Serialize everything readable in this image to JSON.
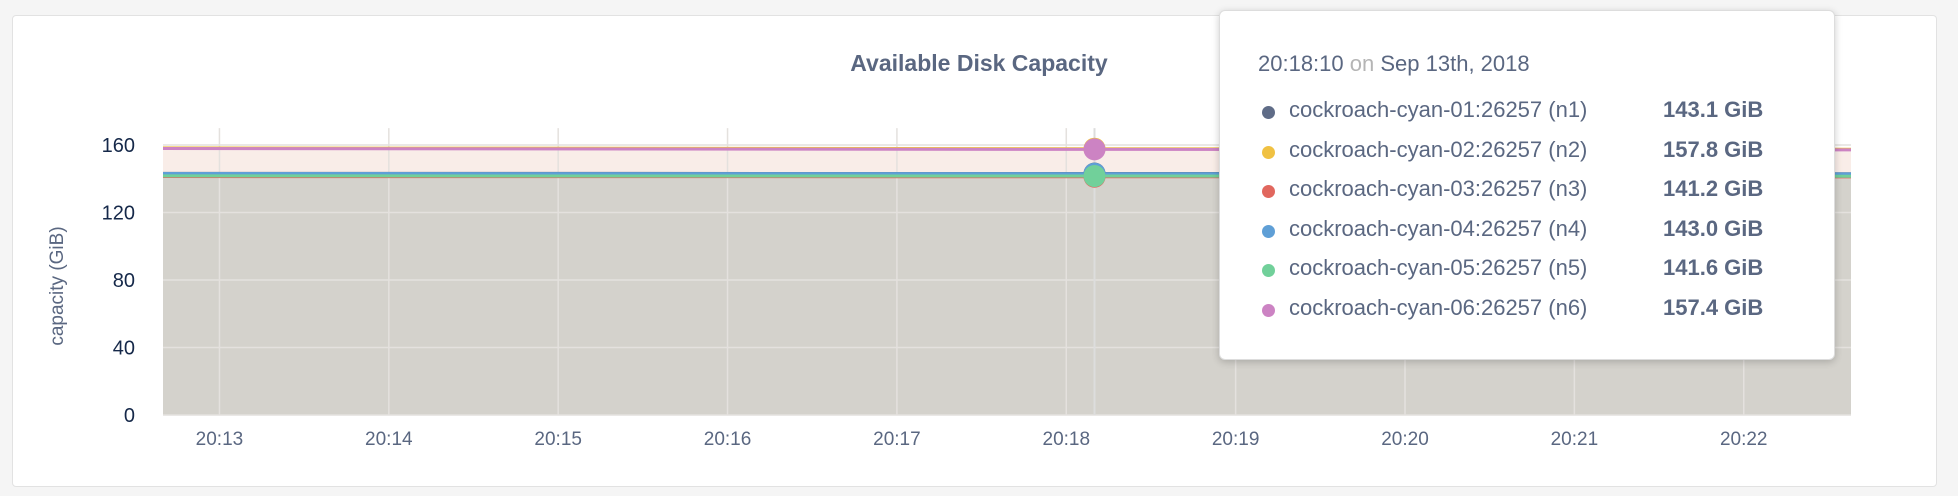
{
  "chart_data": {
    "type": "area",
    "title": "Available Disk Capacity",
    "ylabel": "capacity (GiB)",
    "xlabel": "",
    "ylim": [
      0,
      170
    ],
    "yticks": [
      0,
      40,
      80,
      120,
      160
    ],
    "xlim": [
      "20:12:40",
      "20:22:38"
    ],
    "xticks": [
      "20:13",
      "20:14",
      "20:15",
      "20:16",
      "20:17",
      "20:18",
      "20:19",
      "20:20",
      "20:21",
      "20:22"
    ],
    "grid": true,
    "hover_time": "20:18:10",
    "series": [
      {
        "name": "cockroach-cyan-01:26257 (n1)",
        "color": "#5f6c87",
        "x": [
          "20:12:40",
          "20:18:10",
          "20:22:38"
        ],
        "values": [
          143.2,
          143.1,
          143.0
        ]
      },
      {
        "name": "cockroach-cyan-02:26257 (n2)",
        "color": "#f0c142",
        "x": [
          "20:12:40",
          "20:18:10",
          "20:22:38"
        ],
        "values": [
          158.3,
          157.8,
          157.5
        ]
      },
      {
        "name": "cockroach-cyan-03:26257 (n3)",
        "color": "#e1675e",
        "x": [
          "20:12:40",
          "20:18:10",
          "20:22:38"
        ],
        "values": [
          141.3,
          141.2,
          141.1
        ]
      },
      {
        "name": "cockroach-cyan-04:26257 (n4)",
        "color": "#5f9fd6",
        "x": [
          "20:12:40",
          "20:18:10",
          "20:22:38"
        ],
        "values": [
          143.1,
          143.0,
          142.9
        ]
      },
      {
        "name": "cockroach-cyan-05:26257 (n5)",
        "color": "#71d09a",
        "x": [
          "20:12:40",
          "20:18:10",
          "20:22:38"
        ],
        "values": [
          141.7,
          141.6,
          141.5
        ]
      },
      {
        "name": "cockroach-cyan-06:26257 (n6)",
        "color": "#cc83c3",
        "x": [
          "20:12:40",
          "20:18:10",
          "20:22:38"
        ],
        "values": [
          157.9,
          157.4,
          157.1
        ]
      }
    ]
  },
  "tooltip": {
    "time": "20:18:10",
    "on": "on",
    "date": "Sep 13th, 2018",
    "rows": [
      {
        "name": "cockroach-cyan-01:26257 (n1)",
        "value": "143.1 GiB",
        "color": "#5f6c87"
      },
      {
        "name": "cockroach-cyan-02:26257 (n2)",
        "value": "157.8 GiB",
        "color": "#f0c142"
      },
      {
        "name": "cockroach-cyan-03:26257 (n3)",
        "value": "141.2 GiB",
        "color": "#e1675e"
      },
      {
        "name": "cockroach-cyan-04:26257 (n4)",
        "value": "143.0 GiB",
        "color": "#5f9fd6"
      },
      {
        "name": "cockroach-cyan-05:26257 (n5)",
        "value": "141.6 GiB",
        "color": "#71d09a"
      },
      {
        "name": "cockroach-cyan-06:26257 (n6)",
        "value": "157.4 GiB",
        "color": "#cc83c3"
      }
    ]
  }
}
